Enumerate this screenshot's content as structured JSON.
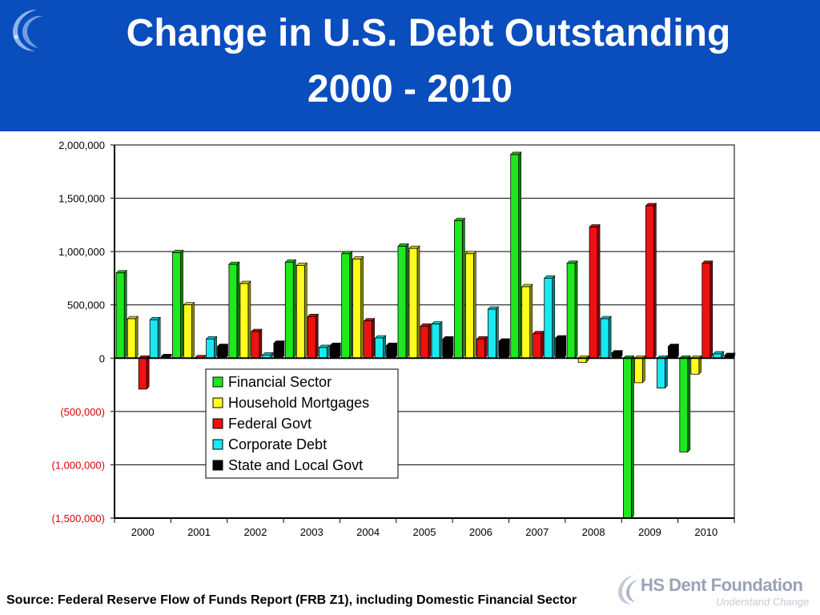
{
  "header": {
    "title_line1": "Change in U.S. Debt Outstanding",
    "title_line2": "2000 - 2010",
    "background": "#0a4dbd",
    "logo_icon": "hs-dent-swoosh-icon"
  },
  "chart_data": {
    "type": "bar",
    "categories": [
      "2000",
      "2001",
      "2002",
      "2003",
      "2004",
      "2005",
      "2006",
      "2007",
      "2008",
      "2009",
      "2010"
    ],
    "series": [
      {
        "name": "Financial Sector",
        "color": "#1ee81e",
        "values": [
          800000,
          990000,
          880000,
          900000,
          980000,
          1050000,
          1290000,
          1910000,
          890000,
          -1500000,
          -880000
        ]
      },
      {
        "name": "Household Mortgages",
        "color": "#ffff1a",
        "values": [
          370000,
          500000,
          700000,
          870000,
          930000,
          1030000,
          980000,
          670000,
          -40000,
          -230000,
          -150000
        ]
      },
      {
        "name": "Federal Govt",
        "color": "#ee1111",
        "values": [
          -290000,
          5000,
          250000,
          390000,
          350000,
          300000,
          180000,
          230000,
          1230000,
          1430000,
          890000
        ]
      },
      {
        "name": "Corporate Debt",
        "color": "#1ae8f0",
        "values": [
          360000,
          180000,
          30000,
          100000,
          190000,
          320000,
          460000,
          750000,
          370000,
          -280000,
          40000
        ]
      },
      {
        "name": "State and Local Govt",
        "color": "#000000",
        "values": [
          15000,
          110000,
          140000,
          120000,
          120000,
          180000,
          160000,
          190000,
          50000,
          110000,
          25000
        ]
      }
    ],
    "yticks": [
      2000000,
      1500000,
      1000000,
      500000,
      0,
      -500000,
      -1000000,
      -1500000
    ],
    "ytick_labels": [
      "2,000,000",
      "1,500,000",
      "1,000,000",
      "500,000",
      "0",
      "(500,000)",
      "(1,000,000)",
      "(1,500,000)"
    ],
    "ylim": [
      -1500000,
      2000000
    ],
    "grid": true,
    "legend_position": "center"
  },
  "footer": {
    "source": "Source: Federal Reserve Flow of Funds Report (FRB Z1), including Domestic Financial Sector",
    "logo_name": "HS Dent Foundation",
    "logo_tagline": "Understand Change",
    "logo_icon": "hs-dent-swoosh-icon"
  }
}
